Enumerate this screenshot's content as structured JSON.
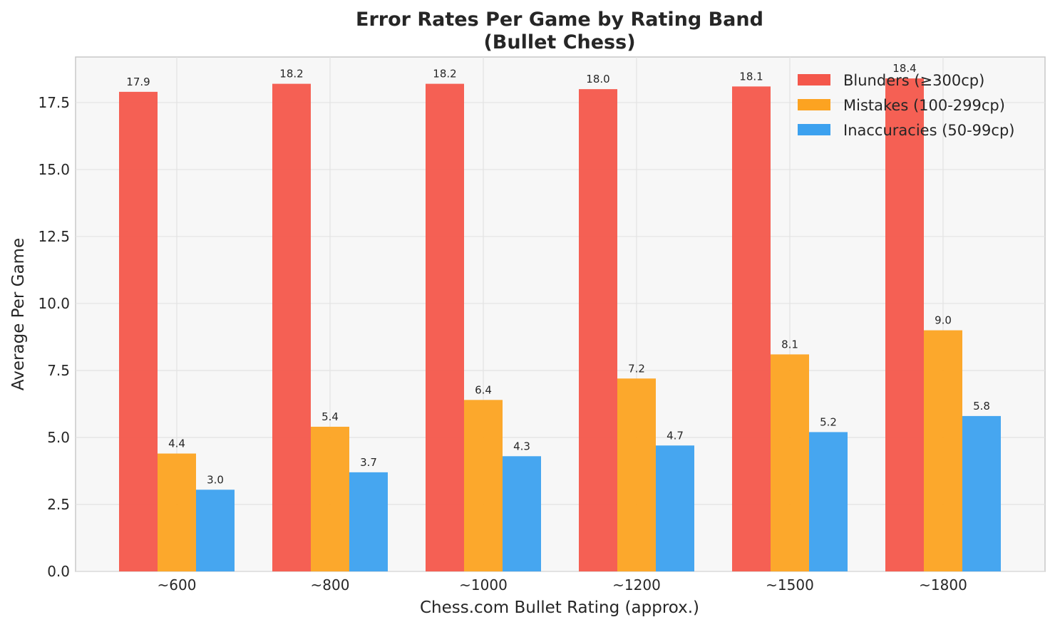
{
  "chart_data": {
    "type": "bar",
    "title_line1": "Error Rates Per Game by Rating Band",
    "title_line2": "(Bullet Chess)",
    "xlabel": "Chess.com Bullet Rating (approx.)",
    "ylabel": "Average Per Game",
    "categories": [
      "~600",
      "~800",
      "~1000",
      "~1200",
      "~1500",
      "~1800"
    ],
    "ylim": [
      0,
      19.2
    ],
    "yticks": [
      "0.0",
      "2.5",
      "5.0",
      "7.5",
      "10.0",
      "12.5",
      "15.0",
      "17.5"
    ],
    "grid": true,
    "legend_position": "top-right",
    "series": [
      {
        "name": "Blunders (≥300cp)",
        "color": "#f4574b",
        "values": [
          17.9,
          18.2,
          18.2,
          18.0,
          18.1,
          18.4
        ],
        "labels": [
          "17.9",
          "18.2",
          "18.2",
          "18.0",
          "18.1",
          "18.4"
        ]
      },
      {
        "name": "Mistakes (100-299cp)",
        "color": "#fca321",
        "values": [
          4.4,
          5.4,
          6.4,
          7.2,
          8.1,
          9.0
        ],
        "labels": [
          "4.4",
          "5.4",
          "6.4",
          "7.2",
          "8.1",
          "9.0"
        ]
      },
      {
        "name": "Inaccuracies (50-99cp)",
        "color": "#3ca1ef",
        "values": [
          3.05,
          3.7,
          4.3,
          4.7,
          5.2,
          5.8
        ],
        "labels": [
          "3.0",
          "3.7",
          "4.3",
          "4.7",
          "5.2",
          "5.8"
        ]
      }
    ]
  }
}
